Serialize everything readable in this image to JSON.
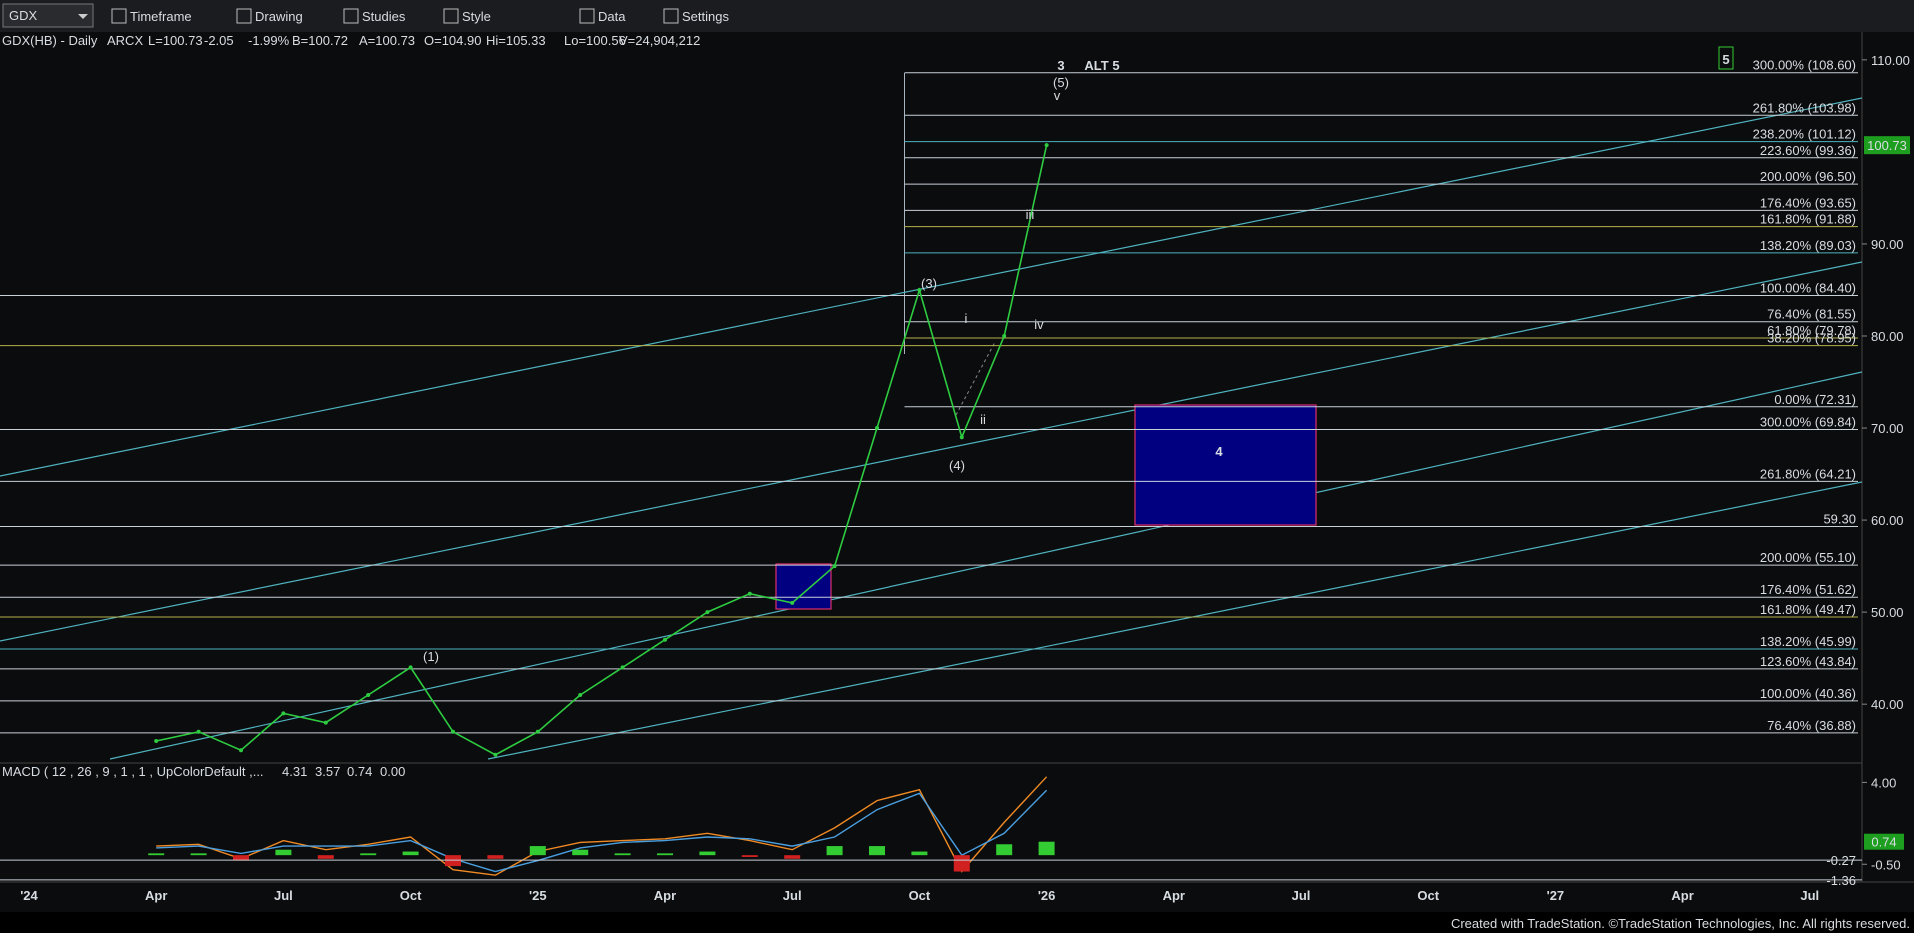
{
  "toolbar": {
    "symbol": "GDX",
    "menus": [
      "Timeframe",
      "Drawing",
      "Studies",
      "Style",
      "Data",
      "Settings"
    ]
  },
  "header": [
    "GDX(HB) - Daily",
    "ARCX",
    "L=100.73",
    "-2.05",
    "-1.99%",
    "B=100.72",
    "A=100.73",
    "O=104.90",
    "Hi=105.33",
    "Lo=100.56",
    "V=24,904,212"
  ],
  "chart_data": [
    {
      "type": "line",
      "color": "#2ecc40",
      "x": [
        "2024-04",
        "2024-05",
        "2024-06",
        "2024-07",
        "2024-08",
        "2024-09",
        "2024-10",
        "2024-11",
        "2024-12",
        "2025-01",
        "2025-02",
        "2025-03",
        "2025-04",
        "2025-05",
        "2025-06",
        "2025-07",
        "2025-08",
        "2025-09",
        "2025-10",
        "2025-11",
        "2025-12",
        "2026-01"
      ],
      "values": [
        36,
        37,
        35,
        39,
        38,
        41,
        44,
        37,
        34.5,
        37,
        41,
        44,
        47,
        50,
        52,
        51,
        55,
        70,
        85,
        69,
        80,
        100.73
      ],
      "ylim": [
        34,
        111.2
      ],
      "yticks": [
        {
          "value": 40,
          "label": "40.00"
        },
        {
          "value": 50,
          "label": "50.00"
        },
        {
          "value": 60,
          "label": "60.00"
        },
        {
          "value": 70,
          "label": "70.00"
        },
        {
          "value": 80,
          "label": "80.00"
        },
        {
          "value": 90,
          "label": "90.00"
        },
        {
          "value": 110,
          "label": "110.00"
        }
      ],
      "last_price": 100.73,
      "time_labels": [
        "'24",
        "Apr",
        "Jul",
        "Oct",
        "'25",
        "Apr",
        "Jul",
        "Oct",
        "'26",
        "Apr",
        "Jul",
        "Oct",
        "'27",
        "Apr",
        "Jul"
      ],
      "fib_levels": [
        {
          "label": "300.00% (108.60)",
          "value": 108.6,
          "color": "#c8d0d8"
        },
        {
          "label": "261.80% (103.98)",
          "value": 103.98,
          "color": "#c8d0d8"
        },
        {
          "label": "238.20% (101.12)",
          "value": 101.12,
          "color": "#4fb3bf"
        },
        {
          "label": "223.60% (99.36)",
          "value": 99.36,
          "color": "#c8d0d8"
        },
        {
          "label": "200.00% (96.50)",
          "value": 96.5,
          "color": "#c8d0d8"
        },
        {
          "label": "176.40% (93.65)",
          "value": 93.65,
          "color": "#c8d0d8"
        },
        {
          "label": "161.80% (91.88)",
          "value": 91.88,
          "color": "#b5b04a"
        },
        {
          "label": "138.20% (89.03)",
          "value": 89.03,
          "color": "#4fb3bf"
        },
        {
          "label": "100.00% (84.40)",
          "value": 84.4,
          "color": "#c8d0d8"
        },
        {
          "label": "76.40% (81.55)",
          "value": 81.55,
          "color": "#c8d0d8"
        },
        {
          "label": "61.80% (79.78)",
          "value": 79.78,
          "color": "#b5b04a"
        },
        {
          "label": "38.20% (78.95)",
          "value": 78.95,
          "color": "#b5b04a"
        },
        {
          "label": "0.00% (72.31)",
          "value": 72.31,
          "color": "#c8d0d8"
        },
        {
          "label": "300.00% (69.84)",
          "value": 69.84,
          "color": "#c8d0d8"
        },
        {
          "label": "261.80% (64.21)",
          "value": 64.21,
          "color": "#c8d0d8"
        },
        {
          "label": "59.30",
          "value": 59.3,
          "color": "#c8d0d8"
        },
        {
          "label": "200.00% (55.10)",
          "value": 55.1,
          "color": "#c8d0d8"
        },
        {
          "label": "176.40% (51.62)",
          "value": 51.62,
          "color": "#c8d0d8"
        },
        {
          "label": "161.80% (49.47)",
          "value": 49.47,
          "color": "#b5b04a"
        },
        {
          "label": "138.20% (45.99)",
          "value": 45.99,
          "color": "#4fb3bf"
        },
        {
          "label": "123.60% (43.84)",
          "value": 43.84,
          "color": "#c8d0d8"
        },
        {
          "label": "100.00% (40.36)",
          "value": 40.36,
          "color": "#c8d0d8"
        },
        {
          "label": "76.40% (36.88)",
          "value": 36.88,
          "color": "#c8d0d8"
        }
      ],
      "annotations": [
        {
          "text": "3",
          "color": "#5ec8d8"
        },
        {
          "text": "ALT 5",
          "color": "#6a9fd8"
        },
        {
          "text": "(5)",
          "color": "#5ec8d8"
        },
        {
          "text": "v",
          "color": "#5ec8d8"
        },
        {
          "text": "iii",
          "color": "#5ec8d8"
        },
        {
          "text": "(3)",
          "color": "#5ec8d8"
        },
        {
          "text": "i",
          "color": "#5ec8d8"
        },
        {
          "text": "iv",
          "color": "#5ec8d8"
        },
        {
          "text": "ii",
          "color": "#5ec8d8"
        },
        {
          "text": "(4)",
          "color": "#5ec8d8"
        },
        {
          "text": "(1)",
          "color": "#5ec8d8"
        },
        {
          "text": "4",
          "color": "#33cc33"
        },
        {
          "text": "5",
          "color": "#33cc33"
        }
      ]
    },
    {
      "type": "line",
      "title": "MACD ( 12 , 26 , 9 , 1 , 1 , UpColorDefault ,...",
      "readout": [
        {
          "value": 4.31,
          "color": "#f08a24"
        },
        {
          "value": 3.57,
          "color": "#4a9fe0"
        },
        {
          "value": 0.74,
          "color": "#33cc33"
        },
        {
          "value": {
            "value": 0,
            "label": "0.00"
          },
          "color": "#33cc33"
        }
      ],
      "x": [
        "2024-04",
        "2024-05",
        "2024-06",
        "2024-07",
        "2024-08",
        "2024-09",
        "2024-10",
        "2024-11",
        "2024-12",
        "2025-01",
        "2025-02",
        "2025-03",
        "2025-04",
        "2025-05",
        "2025-06",
        "2025-07",
        "2025-08",
        "2025-09",
        "2025-10",
        "2025-11",
        "2025-12",
        "2026-01"
      ],
      "series": [
        {
          "color": "#f08a24",
          "values": [
            0.5,
            0.6,
            -0.2,
            0.8,
            0.3,
            0.6,
            1.0,
            -0.8,
            -1.1,
            0.2,
            0.7,
            0.8,
            0.9,
            1.2,
            0.8,
            0.3,
            1.5,
            3.0,
            3.6,
            -0.9,
            1.8,
            4.31
          ]
        },
        {
          "color": "#4a9fe0",
          "values": [
            0.4,
            0.5,
            0.1,
            0.5,
            0.5,
            0.5,
            0.8,
            -0.2,
            -0.9,
            -0.3,
            0.4,
            0.7,
            0.8,
            1.0,
            0.9,
            0.5,
            1.0,
            2.5,
            3.4,
            0.0,
            1.2,
            3.57
          ]
        },
        {
          "type": "bar",
          "color": "#33cc33",
          "negative_color": "#d02020",
          "values": [
            0.1,
            0.1,
            -0.3,
            0.3,
            -0.2,
            0.1,
            0.2,
            -0.6,
            -0.2,
            0.5,
            0.3,
            0.1,
            0.1,
            0.2,
            -0.1,
            -0.2,
            0.5,
            0.5,
            0.2,
            -0.9,
            0.6,
            0.74
          ]
        }
      ],
      "ylim": [
        -1.31,
        4.87
      ],
      "yticks": [
        {
          "value": 4,
          "label": "4.00"
        },
        {
          "value": -0.5,
          "label": "-0.50"
        }
      ],
      "markers": [
        0.74,
        -0.27,
        -1.36
      ]
    }
  ],
  "footer": "Created with TradeStation. ©TradeStation Technologies, Inc. All rights reserved."
}
